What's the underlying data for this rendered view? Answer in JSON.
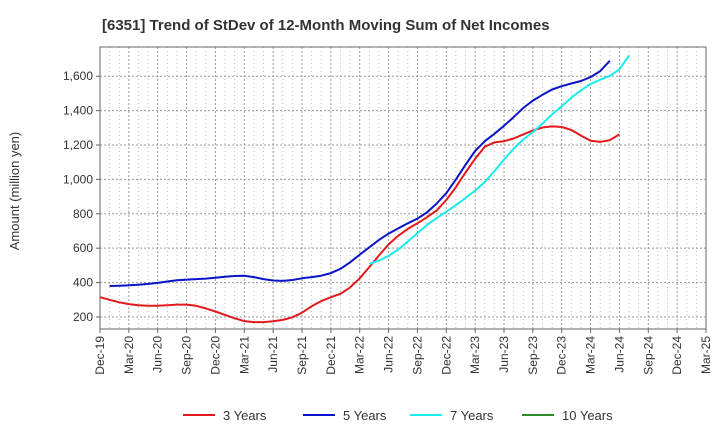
{
  "chart_data": {
    "type": "line",
    "title": "[6351]  Trend of StDev of 12-Month Moving Sum of Net Incomes",
    "ylabel": "Amount (million yen)",
    "xlabel": "",
    "x_ticks": [
      "Dec-19",
      "Mar-20",
      "Jun-20",
      "Sep-20",
      "Dec-20",
      "Mar-21",
      "Jun-21",
      "Sep-21",
      "Dec-21",
      "Mar-22",
      "Jun-22",
      "Sep-22",
      "Dec-22",
      "Mar-23",
      "Jun-23",
      "Sep-23",
      "Dec-23",
      "Mar-24",
      "Jun-24",
      "Sep-24",
      "Dec-24",
      "Mar-25"
    ],
    "y_ticks": [
      200,
      400,
      600,
      800,
      1000,
      1200,
      1400,
      1600
    ],
    "ylim": [
      130,
      1770
    ],
    "grid": true,
    "legend_position": "bottom",
    "series": [
      {
        "name": "3 Years",
        "color": "#e31a1c",
        "start_index": 0,
        "values": [
          315,
          300,
          285,
          275,
          268,
          265,
          265,
          268,
          272,
          272,
          265,
          250,
          232,
          212,
          192,
          176,
          170,
          170,
          175,
          183,
          198,
          225,
          262,
          292,
          315,
          335,
          372,
          425,
          490,
          558,
          622,
          672,
          712,
          745,
          780,
          820,
          880,
          955,
          1040,
          1120,
          1190,
          1215,
          1222,
          1238,
          1262,
          1285,
          1302,
          1308,
          1305,
          1288,
          1255,
          1225,
          1218,
          1228,
          1262
        ]
      },
      {
        "name": "5 Years",
        "color": "#0a14c8",
        "start_index": 1,
        "values": [
          380,
          382,
          384,
          387,
          392,
          398,
          406,
          413,
          417,
          420,
          423,
          428,
          434,
          438,
          440,
          432,
          420,
          412,
          410,
          415,
          425,
          432,
          440,
          455,
          480,
          518,
          562,
          605,
          648,
          685,
          715,
          745,
          772,
          808,
          860,
          920,
          1000,
          1085,
          1165,
          1222,
          1265,
          1312,
          1362,
          1415,
          1458,
          1492,
          1523,
          1542,
          1558,
          1572,
          1595,
          1630,
          1690
        ]
      },
      {
        "name": "7 Years",
        "color": "#18ecec",
        "start_index": 28,
        "values": [
          508,
          528,
          555,
          592,
          638,
          688,
          735,
          775,
          812,
          850,
          892,
          935,
          985,
          1048,
          1115,
          1178,
          1232,
          1275,
          1325,
          1378,
          1425,
          1475,
          1518,
          1555,
          1580,
          1602,
          1640,
          1720
        ]
      },
      {
        "name": "10 Years",
        "color": "#2e8b2e",
        "start_index": 0,
        "values": []
      }
    ]
  }
}
